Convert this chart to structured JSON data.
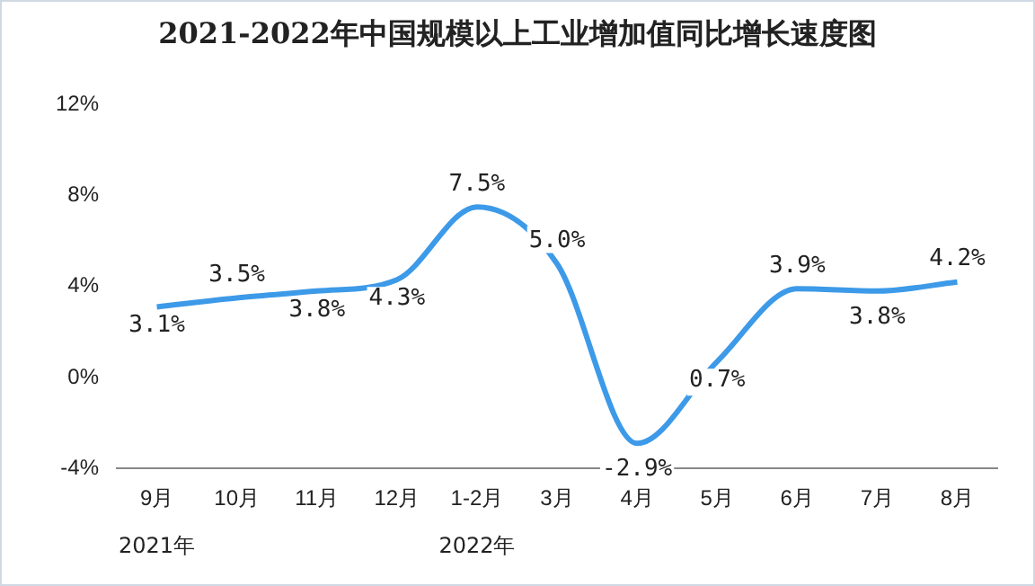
{
  "chart_data": {
    "type": "line",
    "title": "2021-2022年中国规模以上工业增加值同比增长速度图",
    "categories": [
      "9月",
      "10月",
      "11月",
      "12月",
      "1-2月",
      "3月",
      "4月",
      "5月",
      "6月",
      "7月",
      "8月"
    ],
    "series": [
      {
        "color": "#3d9ae8",
        "values": [
          3.1,
          3.5,
          3.8,
          4.3,
          7.5,
          5.0,
          -2.9,
          0.7,
          3.9,
          3.8,
          4.2
        ],
        "value_labels": [
          "3.1%",
          "3.5%",
          "3.8%",
          "4.3%",
          "7.5%",
          "5.0%",
          "-2.9%",
          "0.7%",
          "3.9%",
          "3.8%",
          "4.2%"
        ]
      }
    ],
    "ylim": [
      -4,
      12
    ],
    "yticks": [
      {
        "value": -4,
        "label": "-4%"
      },
      {
        "value": 0,
        "label": "0%"
      },
      {
        "value": 4,
        "label": "4%"
      },
      {
        "value": 8,
        "label": "8%"
      },
      {
        "value": 12,
        "label": "12%"
      }
    ],
    "grid": false,
    "legend": false,
    "marker": "none",
    "line_style": "solid",
    "annotations": [
      "2021年",
      "2022年"
    ]
  }
}
